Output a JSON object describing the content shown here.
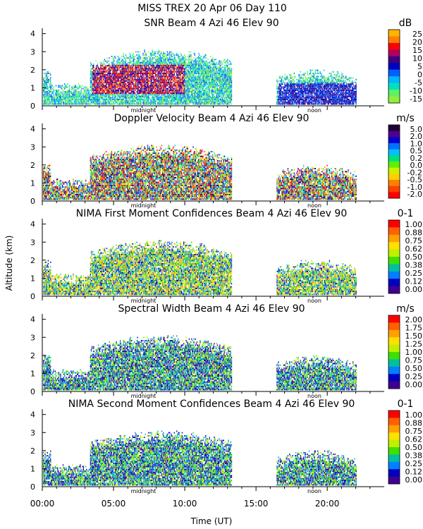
{
  "chart_data": {
    "type": "heatmap",
    "title": "MISS TREX   20 Apr 06 Day 110",
    "xlabel": "Time (UT)",
    "ylabel": "Altitude (km)",
    "xlim": [
      0,
      24
    ],
    "ylim": [
      0,
      4.3
    ],
    "x_tick_labels": [
      "00:00",
      "05:00",
      "10:00",
      "15:00",
      "20:00"
    ],
    "y_tick_labels": [
      "0",
      "1",
      "2",
      "3",
      "4"
    ],
    "markers": [
      {
        "label": "midnight",
        "x": 7.1
      },
      {
        "label": "noon",
        "x": 19.1
      }
    ],
    "grid": false,
    "panels": [
      {
        "title": "SNR Beam 4 Azi  46 Elev 90",
        "unit": "dB",
        "colorbar_labels": [
          "25",
          "20",
          "15",
          "10",
          "5",
          "0",
          "-5",
          "-10",
          "-15"
        ],
        "colorbar_colors": [
          "#ffb400",
          "#ff8000",
          "#ff0000",
          "#b00060",
          "#400080",
          "#0000c0",
          "#0060ff",
          "#00b4ff",
          "#00e0c0",
          "#60f060",
          "#90ee40"
        ]
      },
      {
        "title": "Doppler Velocity Beam 4 Azi  46 Elev 90",
        "unit": "m/s",
        "colorbar_labels": [
          "5.0",
          "2.0",
          "1.0",
          "0.5",
          "0.2",
          "0.0",
          "-0.2",
          "-0.5",
          "-1.0",
          "-2.0"
        ],
        "colorbar_colors": [
          "#200030",
          "#500090",
          "#0000d0",
          "#0070ff",
          "#00c0ff",
          "#00e080",
          "#60f000",
          "#d0f000",
          "#ffd000",
          "#ff8000",
          "#ff4000",
          "#ff0000"
        ]
      },
      {
        "title": "NIMA First Moment Confidences Beam 4 Azi  46 Elev 90",
        "unit": "0-1",
        "colorbar_labels": [
          "1.00",
          "0.88",
          "0.75",
          "0.62",
          "0.50",
          "0.38",
          "0.25",
          "0.12",
          "0.00"
        ],
        "colorbar_colors": [
          "#ff0000",
          "#ff6000",
          "#ffa000",
          "#ffe000",
          "#c0f000",
          "#40e000",
          "#00c0a0",
          "#0080ff",
          "#0000c0",
          "#400090"
        ]
      },
      {
        "title": "Spectral Width Beam 4 Azi  46 Elev 90",
        "unit": "m/s",
        "colorbar_labels": [
          "2.00",
          "1.75",
          "1.50",
          "1.25",
          "1.00",
          "0.75",
          "0.50",
          "0.25",
          "0.00"
        ],
        "colorbar_colors": [
          "#ff0000",
          "#ff6000",
          "#ffa000",
          "#ffe000",
          "#c0f000",
          "#40e000",
          "#00c0a0",
          "#0080ff",
          "#0000c0",
          "#400090"
        ]
      },
      {
        "title": "NIMA Second Moment Confidences Beam 4 Azi  46 Elev 90",
        "unit": "0-1",
        "colorbar_labels": [
          "1.00",
          "0.88",
          "0.75",
          "0.62",
          "0.50",
          "0.38",
          "0.25",
          "0.12",
          "0.00"
        ],
        "colorbar_colors": [
          "#ff0000",
          "#ff6000",
          "#ffa000",
          "#ffe000",
          "#c0f000",
          "#40e000",
          "#00c0a0",
          "#0080ff",
          "#0000c0",
          "#400090"
        ]
      }
    ]
  }
}
